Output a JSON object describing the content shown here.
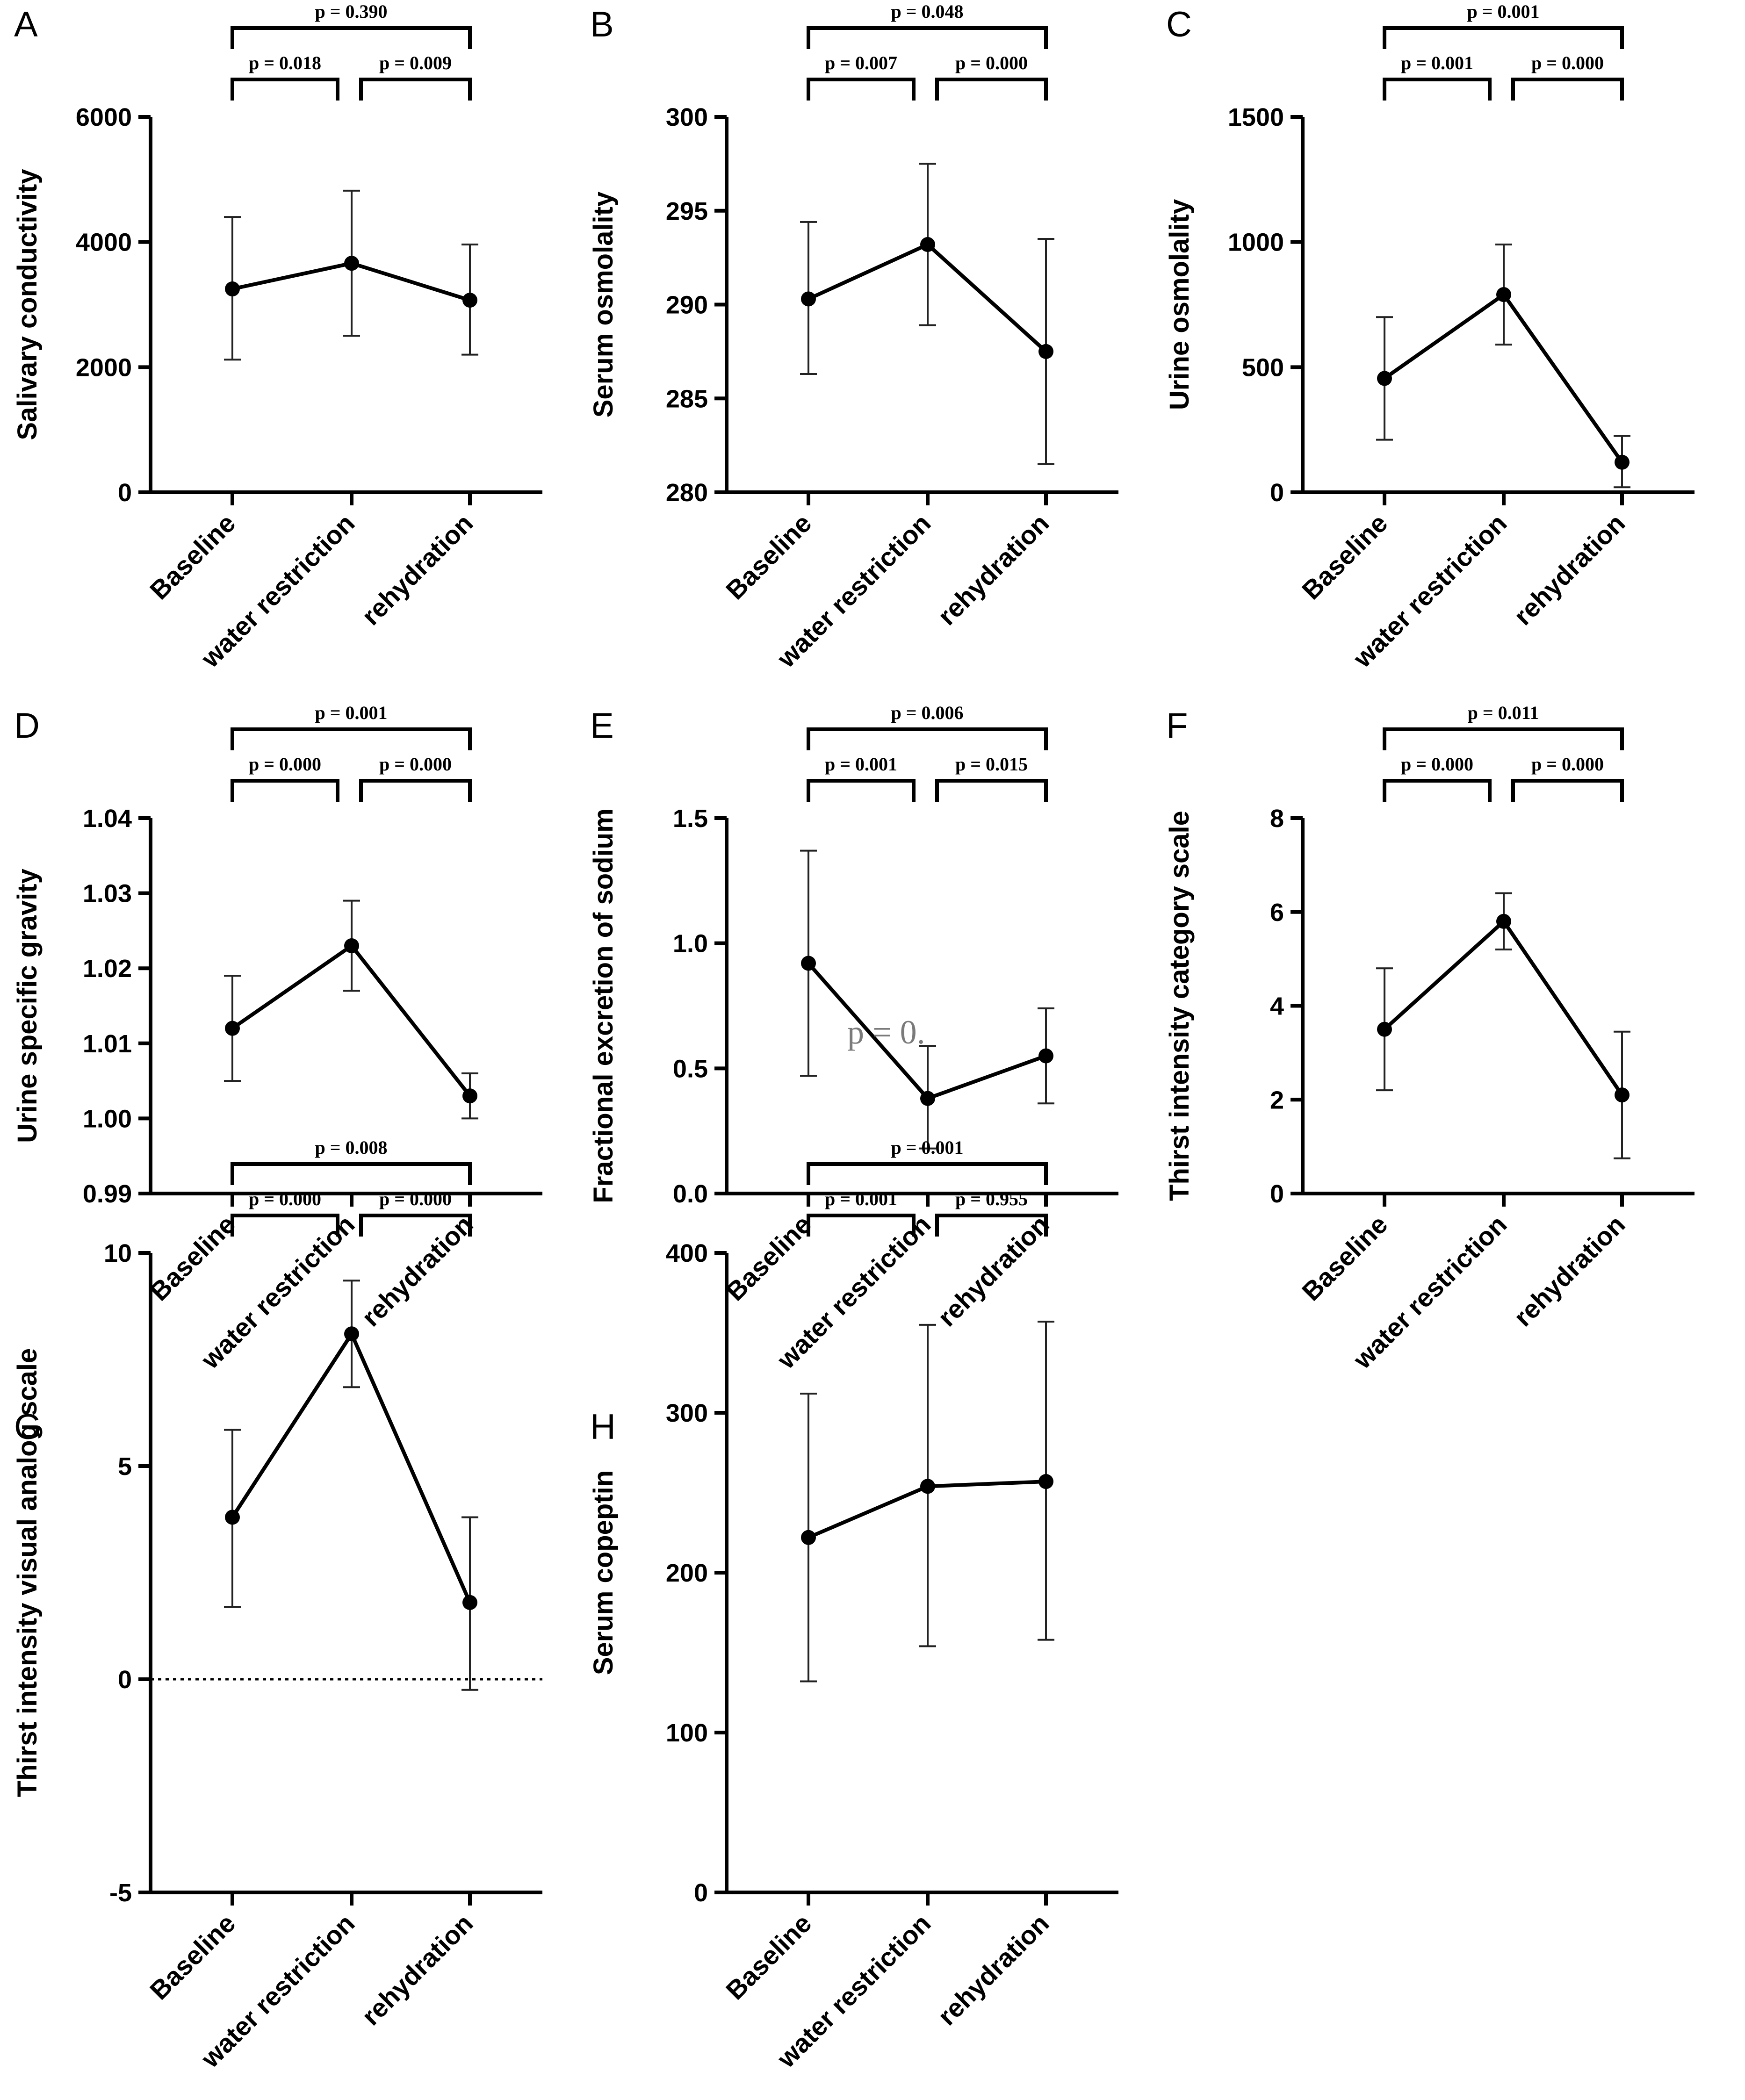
{
  "chart_data": [
    {
      "id": "A",
      "letter": "A",
      "type": "line",
      "ylabel": "Salivary conductivity",
      "categories": [
        "Baseline",
        "water restriction",
        "rehydration"
      ],
      "ylim": [
        0,
        6000
      ],
      "yticks": [
        0,
        2000,
        4000,
        6000
      ],
      "yticklabels": [
        "0",
        "2000",
        "4000",
        "6000"
      ],
      "values": [
        3250,
        3660,
        3070
      ],
      "err_high": [
        4400,
        4820,
        3960
      ],
      "err_low": [
        2120,
        2500,
        2200
      ],
      "pvalues": {
        "left": "p = 0.018",
        "right": "p = 0.009",
        "top": "p = 0.390"
      },
      "zero_line": false
    },
    {
      "id": "B",
      "letter": "B",
      "type": "line",
      "ylabel": "Serum osmolality",
      "categories": [
        "Baseline",
        "water restriction",
        "rehydration"
      ],
      "ylim": [
        280,
        300
      ],
      "yticks": [
        280,
        285,
        290,
        295,
        300
      ],
      "yticklabels": [
        "280",
        "285",
        "290",
        "295",
        "300"
      ],
      "values": [
        290.3,
        293.2,
        287.5
      ],
      "err_high": [
        294.4,
        297.5,
        293.5
      ],
      "err_low": [
        286.3,
        288.9,
        281.5
      ],
      "pvalues": {
        "left": "p = 0.007",
        "right": "p = 0.000",
        "top": "p = 0.048"
      },
      "zero_line": false
    },
    {
      "id": "C",
      "letter": "C",
      "type": "line",
      "ylabel": "Urine osmolality",
      "categories": [
        "Baseline",
        "water restriction",
        "rehydration"
      ],
      "ylim": [
        0,
        1500
      ],
      "yticks": [
        0,
        500,
        1000,
        1500
      ],
      "yticklabels": [
        "0",
        "500",
        "1000",
        "1500"
      ],
      "values": [
        455,
        790,
        120
      ],
      "err_high": [
        700,
        990,
        225
      ],
      "err_low": [
        210,
        590,
        20
      ],
      "pvalues": {
        "left": "p = 0.001",
        "right": "p = 0.000",
        "top": "p = 0.001"
      },
      "zero_line": true
    },
    {
      "id": "D",
      "letter": "D",
      "type": "line",
      "ylabel": "Urine specific gravity",
      "categories": [
        "Baseline",
        "water restriction",
        "rehydration"
      ],
      "ylim": [
        0.99,
        1.04
      ],
      "yticks": [
        0.99,
        1.0,
        1.01,
        1.02,
        1.03,
        1.04
      ],
      "yticklabels": [
        "0.99",
        "1.00",
        "1.01",
        "1.02",
        "1.03",
        "1.04"
      ],
      "values": [
        1.012,
        1.023,
        1.003
      ],
      "err_high": [
        1.019,
        1.029,
        1.006
      ],
      "err_low": [
        1.005,
        1.017,
        1.0
      ],
      "pvalues": {
        "left": "p = 0.000",
        "right": "p = 0.000",
        "top": "p = 0.001"
      },
      "zero_line": false
    },
    {
      "id": "E",
      "letter": "E",
      "type": "line",
      "ylabel": "Fractional excretion of sodium",
      "categories": [
        "Baseline",
        "water restriction",
        "rehydration"
      ],
      "ylim": [
        0,
        1.5
      ],
      "yticks": [
        0,
        0.5,
        1.0,
        1.5
      ],
      "yticklabels": [
        "0.0",
        "0.5",
        "1.0",
        "1.5"
      ],
      "values": [
        0.92,
        0.38,
        0.55
      ],
      "err_high": [
        1.37,
        0.59,
        0.74
      ],
      "err_low": [
        0.47,
        0.18,
        0.36
      ],
      "pvalues": {
        "left": "p = 0.001",
        "right": "p = 0.015",
        "top": "p = 0.006"
      },
      "zero_line": false,
      "annotation": "p = 0."
    },
    {
      "id": "F",
      "letter": "F",
      "type": "line",
      "ylabel": "Thirst intensity category scale",
      "categories": [
        "Baseline",
        "water restriction",
        "rehydration"
      ],
      "ylim": [
        0,
        8
      ],
      "yticks": [
        0,
        2,
        4,
        6,
        8
      ],
      "yticklabels": [
        "0",
        "2",
        "4",
        "6",
        "8"
      ],
      "values": [
        3.5,
        5.8,
        2.1
      ],
      "err_high": [
        4.8,
        6.4,
        3.45
      ],
      "err_low": [
        2.2,
        5.2,
        0.75
      ],
      "pvalues": {
        "left": "p = 0.000",
        "right": "p = 0.000",
        "top": "p = 0.011"
      },
      "zero_line": true
    },
    {
      "id": "G",
      "letter": "G",
      "type": "line",
      "ylabel": "Thirst intensity visual analog scale",
      "categories": [
        "Baseline",
        "water restriction",
        "rehydration"
      ],
      "ylim": [
        -5,
        10
      ],
      "yticks": [
        -5,
        0,
        5,
        10
      ],
      "yticklabels": [
        "-5",
        "0",
        "5",
        "10"
      ],
      "values": [
        3.8,
        8.1,
        1.8
      ],
      "err_high": [
        5.85,
        9.35,
        3.8
      ],
      "err_low": [
        1.7,
        6.85,
        -0.25
      ],
      "pvalues": {
        "left": "p = 0.000",
        "right": "p = 0.000",
        "top": "p = 0.008"
      },
      "zero_line": true
    },
    {
      "id": "H",
      "letter": "H",
      "type": "line",
      "ylabel": "Serum copeptin",
      "categories": [
        "Baseline",
        "water restriction",
        "rehydration"
      ],
      "ylim": [
        0,
        400
      ],
      "yticks": [
        0,
        100,
        200,
        300,
        400
      ],
      "yticklabels": [
        "0",
        "100",
        "200",
        "300",
        "400"
      ],
      "values": [
        222,
        254,
        257
      ],
      "err_high": [
        312,
        355,
        357
      ],
      "err_low": [
        132,
        154,
        158
      ],
      "pvalues": {
        "left": "p = 0.001",
        "right": "p = 0.955",
        "top": "p = 0.001"
      },
      "zero_line": false
    }
  ]
}
